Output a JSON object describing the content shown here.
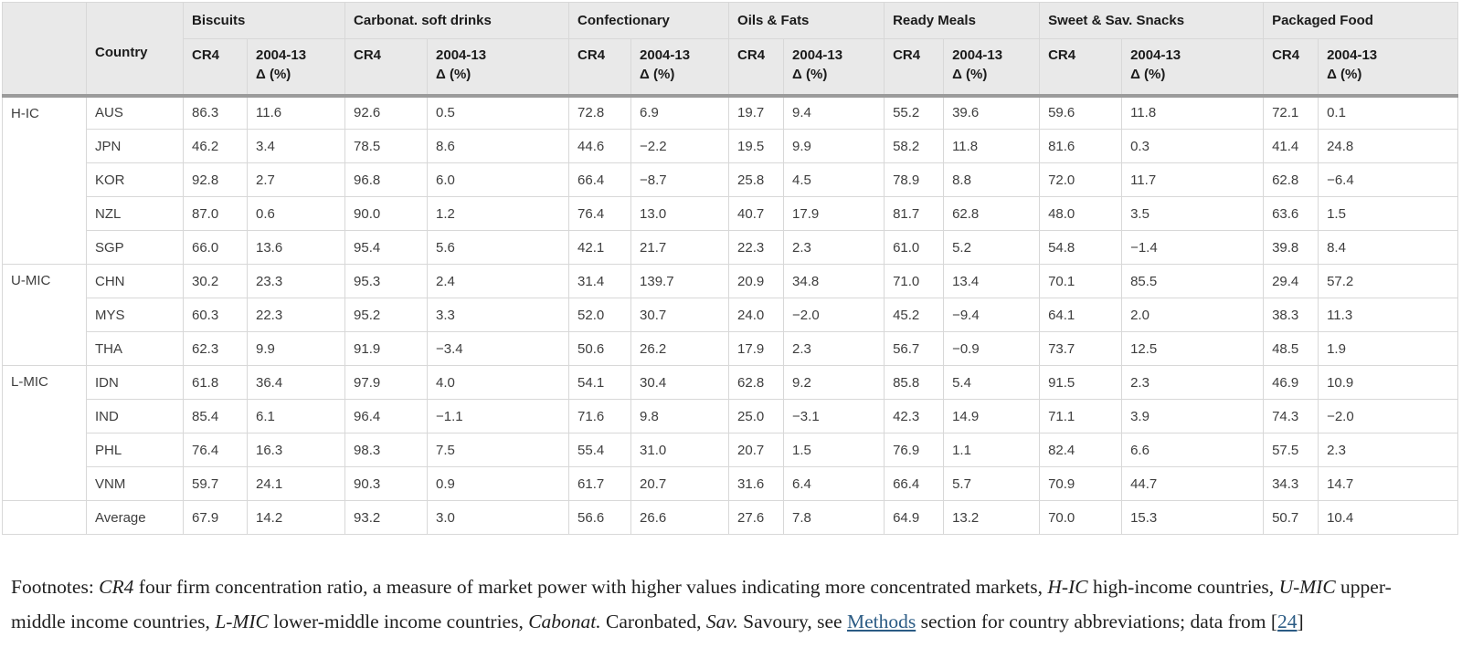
{
  "colors": {
    "header_bg": "#e9e9e9",
    "header_bar": "#9b9b9b",
    "link": "#2b5b84",
    "grid": "#d8d8d8",
    "group_divider": "#aeaeae"
  },
  "table": {
    "country_header": "Country",
    "sub_headers": {
      "cr4": "CR4",
      "delta_line1": "2004-13",
      "delta_line2": "Δ (%)"
    },
    "categories": [
      {
        "label": "Biscuits"
      },
      {
        "label": "Carbonat. soft drinks"
      },
      {
        "label": "Confectionary"
      },
      {
        "label": "Oils & Fats"
      },
      {
        "label": "Ready Meals"
      },
      {
        "label": "Sweet & Sav. Snacks"
      },
      {
        "label": "Packaged Food"
      }
    ],
    "groups": [
      {
        "label": "H-IC",
        "rows": [
          {
            "country": "AUS",
            "values": [
              "86.3",
              "11.6",
              "92.6",
              "0.5",
              "72.8",
              "6.9",
              "19.7",
              "9.4",
              "55.2",
              "39.6",
              "59.6",
              "11.8",
              "72.1",
              "0.1"
            ]
          },
          {
            "country": "JPN",
            "values": [
              "46.2",
              "3.4",
              "78.5",
              "8.6",
              "44.6",
              "−2.2",
              "19.5",
              "9.9",
              "58.2",
              "11.8",
              "81.6",
              "0.3",
              "41.4",
              "24.8"
            ]
          },
          {
            "country": "KOR",
            "values": [
              "92.8",
              "2.7",
              "96.8",
              "6.0",
              "66.4",
              "−8.7",
              "25.8",
              "4.5",
              "78.9",
              "8.8",
              "72.0",
              "11.7",
              "62.8",
              "−6.4"
            ]
          },
          {
            "country": "NZL",
            "values": [
              "87.0",
              "0.6",
              "90.0",
              "1.2",
              "76.4",
              "13.0",
              "40.7",
              "17.9",
              "81.7",
              "62.8",
              "48.0",
              "3.5",
              "63.6",
              "1.5"
            ]
          },
          {
            "country": "SGP",
            "values": [
              "66.0",
              "13.6",
              "95.4",
              "5.6",
              "42.1",
              "21.7",
              "22.3",
              "2.3",
              "61.0",
              "5.2",
              "54.8",
              "−1.4",
              "39.8",
              "8.4"
            ]
          }
        ]
      },
      {
        "label": "U-MIC",
        "rows": [
          {
            "country": "CHN",
            "values": [
              "30.2",
              "23.3",
              "95.3",
              "2.4",
              "31.4",
              "139.7",
              "20.9",
              "34.8",
              "71.0",
              "13.4",
              "70.1",
              "85.5",
              "29.4",
              "57.2"
            ]
          },
          {
            "country": "MYS",
            "values": [
              "60.3",
              "22.3",
              "95.2",
              "3.3",
              "52.0",
              "30.7",
              "24.0",
              "−2.0",
              "45.2",
              "−9.4",
              "64.1",
              "2.0",
              "38.3",
              "11.3"
            ]
          },
          {
            "country": "THA",
            "values": [
              "62.3",
              "9.9",
              "91.9",
              "−3.4",
              "50.6",
              "26.2",
              "17.9",
              "2.3",
              "56.7",
              "−0.9",
              "73.7",
              "12.5",
              "48.5",
              "1.9"
            ]
          }
        ]
      },
      {
        "label": "L-MIC",
        "rows": [
          {
            "country": "IDN",
            "values": [
              "61.8",
              "36.4",
              "97.9",
              "4.0",
              "54.1",
              "30.4",
              "62.8",
              "9.2",
              "85.8",
              "5.4",
              "91.5",
              "2.3",
              "46.9",
              "10.9"
            ]
          },
          {
            "country": "IND",
            "values": [
              "85.4",
              "6.1",
              "96.4",
              "−1.1",
              "71.6",
              "9.8",
              "25.0",
              "−3.1",
              "42.3",
              "14.9",
              "71.1",
              "3.9",
              "74.3",
              "−2.0"
            ]
          },
          {
            "country": "PHL",
            "values": [
              "76.4",
              "16.3",
              "98.3",
              "7.5",
              "55.4",
              "31.0",
              "20.7",
              "1.5",
              "76.9",
              "1.1",
              "82.4",
              "6.6",
              "57.5",
              "2.3"
            ]
          },
          {
            "country": "VNM",
            "values": [
              "59.7",
              "24.1",
              "90.3",
              "0.9",
              "61.7",
              "20.7",
              "31.6",
              "6.4",
              "66.4",
              "5.7",
              "70.9",
              "44.7",
              "34.3",
              "14.7"
            ]
          }
        ]
      }
    ],
    "average": {
      "label": "Average",
      "values": [
        "67.9",
        "14.2",
        "93.2",
        "3.0",
        "56.6",
        "26.6",
        "27.6",
        "7.8",
        "64.9",
        "13.2",
        "70.0",
        "15.3",
        "50.7",
        "10.4"
      ]
    }
  },
  "footnotes": {
    "segments": [
      {
        "text": "Footnotes: ",
        "style": "normal"
      },
      {
        "text": "CR4",
        "style": "italic"
      },
      {
        "text": " four firm concentration ratio, a measure of market power with higher values indicating more concentrated markets, ",
        "style": "normal"
      },
      {
        "text": "H-IC",
        "style": "italic"
      },
      {
        "text": " high-income countries, ",
        "style": "normal"
      },
      {
        "text": "U-MIC",
        "style": "italic"
      },
      {
        "text": " upper-middle income countries, ",
        "style": "normal"
      },
      {
        "text": "L-MIC",
        "style": "italic"
      },
      {
        "text": " lower-middle income countries, ",
        "style": "normal"
      },
      {
        "text": "Cabonat.",
        "style": "italic"
      },
      {
        "text": " Caronbated, ",
        "style": "normal"
      },
      {
        "text": "Sav.",
        "style": "italic"
      },
      {
        "text": " Savoury, see ",
        "style": "normal"
      },
      {
        "text": "Methods",
        "style": "link"
      },
      {
        "text": " section for country abbreviations; data from [",
        "style": "normal"
      },
      {
        "text": "24",
        "style": "link"
      },
      {
        "text": "]",
        "style": "normal"
      }
    ]
  }
}
